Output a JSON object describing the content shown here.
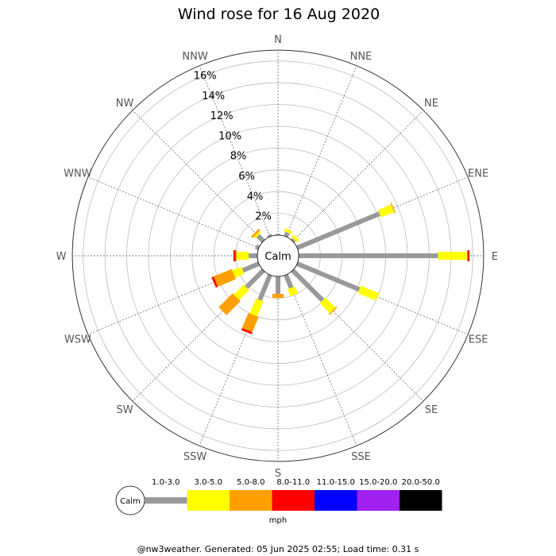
{
  "chart_data": {
    "type": "wind-rose",
    "title": "Wind rose for 16 Aug 2020",
    "directions": [
      "N",
      "NNE",
      "NE",
      "ENE",
      "E",
      "ESE",
      "SE",
      "SSE",
      "S",
      "SSW",
      "SW",
      "WSW",
      "W",
      "WNW",
      "NW",
      "NNW"
    ],
    "radial_labels": [
      "2%",
      "4%",
      "6%",
      "8%",
      "10%",
      "12%",
      "14%",
      "16%"
    ],
    "radial_max": 17,
    "calm_label": "Calm",
    "units": "mph",
    "bins": [
      {
        "label": "1.0-3.0",
        "color": "#999999"
      },
      {
        "label": "3.0-5.0",
        "color": "#ffff00"
      },
      {
        "label": "5.0-8.0",
        "color": "#ffa000"
      },
      {
        "label": "8.0-11.0",
        "color": "#ff0000"
      },
      {
        "label": "11.0-15.0",
        "color": "#0000ff"
      },
      {
        "label": "15.0-20.0",
        "color": "#a020f0"
      },
      {
        "label": "20.0-50.0",
        "color": "#000000"
      }
    ],
    "series": [
      {
        "direction": "N",
        "values": [
          0.1,
          0.0,
          0.0,
          0.0,
          0,
          0,
          0
        ]
      },
      {
        "direction": "NNE",
        "values": [
          0.4,
          0.3,
          0.0,
          0.0,
          0,
          0,
          0
        ]
      },
      {
        "direction": "NE",
        "values": [
          0.2,
          0.3,
          0.0,
          0.0,
          0,
          0,
          0
        ]
      },
      {
        "direction": "ENE",
        "values": [
          8.2,
          1.3,
          0.1,
          0.0,
          0,
          0,
          0
        ]
      },
      {
        "direction": "E",
        "values": [
          12.8,
          2.7,
          0.0,
          0.2,
          0,
          0,
          0
        ]
      },
      {
        "direction": "ESE",
        "values": [
          6.2,
          1.8,
          0.0,
          0.0,
          0,
          0,
          0
        ]
      },
      {
        "direction": "SE",
        "values": [
          3.9,
          1.3,
          0.1,
          0.0,
          0,
          0,
          0
        ]
      },
      {
        "direction": "SSE",
        "values": [
          1.3,
          0.7,
          0.0,
          0.0,
          0,
          0,
          0
        ]
      },
      {
        "direction": "S",
        "values": [
          1.6,
          0.0,
          0.4,
          0.0,
          0,
          0,
          0
        ]
      },
      {
        "direction": "SSW",
        "values": [
          2.5,
          1.5,
          1.5,
          0.2,
          0,
          0,
          0
        ]
      },
      {
        "direction": "SW",
        "values": [
          2.2,
          1.3,
          1.8,
          0.0,
          0,
          0,
          0
        ]
      },
      {
        "direction": "WSW",
        "values": [
          1.6,
          0.9,
          1.8,
          0.2,
          0,
          0,
          0
        ]
      },
      {
        "direction": "W",
        "values": [
          0.8,
          1.1,
          0.1,
          0.2,
          0,
          0,
          0
        ]
      },
      {
        "direction": "WNW",
        "values": [
          0.3,
          0.0,
          0.0,
          0.0,
          0,
          0,
          0
        ]
      },
      {
        "direction": "NW",
        "values": [
          0.7,
          0.2,
          0.2,
          0.0,
          0,
          0,
          0
        ]
      },
      {
        "direction": "NNW",
        "values": [
          0.2,
          0.0,
          0.0,
          0.0,
          0,
          0,
          0
        ]
      }
    ]
  },
  "footer": "@nw3weather. Generated: 05 Jun 2025 02:55; Load time: 0.31 s"
}
